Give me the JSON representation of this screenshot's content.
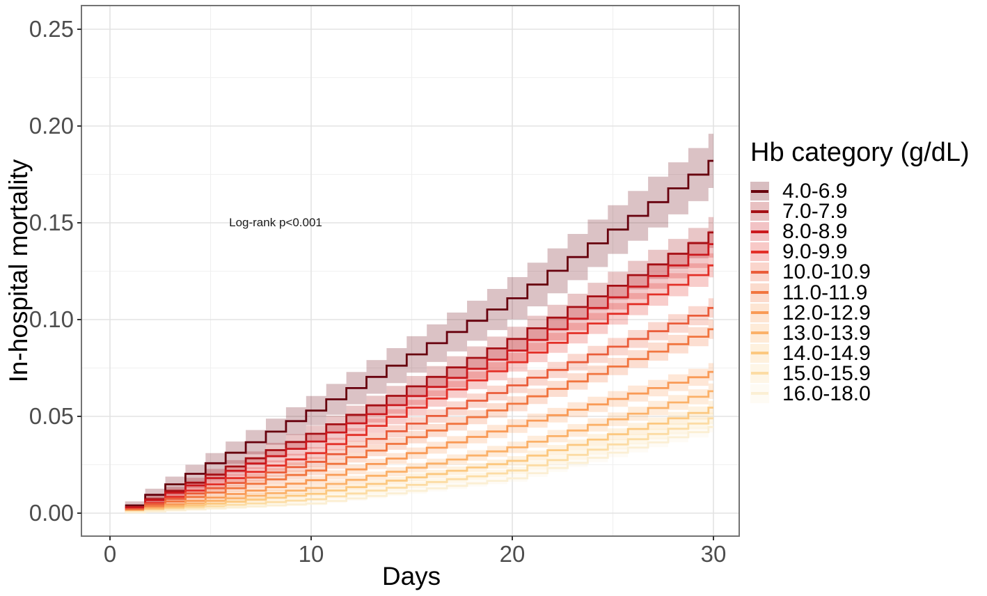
{
  "chart_data": {
    "type": "line",
    "variant": "kaplan_meier_cumulative_incidence_step_curves_with_confidence_bands",
    "title": "",
    "xlabel": "Days",
    "ylabel": "In-hospital mortality",
    "xlim": [
      -1.5,
      31.3
    ],
    "ylim": [
      -0.012,
      0.262
    ],
    "x_tick_values": [
      0,
      10,
      20,
      30
    ],
    "x_tick_labels": [
      "0",
      "10",
      "20",
      "30"
    ],
    "x_minor_gridlines": [
      5,
      15,
      25
    ],
    "y_tick_values": [
      0,
      0.05,
      0.1,
      0.15,
      0.2,
      0.25
    ],
    "y_tick_labels": [
      "0.00",
      "0.05",
      "0.10",
      "0.15",
      "0.20",
      "0.25"
    ],
    "y_minor_gridlines": [
      0.025,
      0.075,
      0.125,
      0.175,
      0.225
    ],
    "grid": true,
    "legend_position": "right",
    "legend_title": "Hb category (g/dL)",
    "annotation": {
      "text": "Log-rank p<0.001",
      "x_day": 8.2,
      "y_value": 0.15
    },
    "anchor_days": [
      1,
      10,
      20,
      30
    ],
    "band_alpha": 0.24,
    "series": [
      {
        "name": "4.0-6.9",
        "color": "#67000d",
        "values": [
          0.004,
          0.053,
          0.111,
          0.182
        ],
        "ci_halfwidth_day30": 0.014
      },
      {
        "name": "7.0-7.9",
        "color": "#a50f15",
        "values": [
          0.003,
          0.041,
          0.09,
          0.145
        ],
        "ci_halfwidth_day30": 0.008
      },
      {
        "name": "8.0-8.9",
        "color": "#cb181d",
        "values": [
          0.003,
          0.037,
          0.084,
          0.139
        ],
        "ci_halfwidth_day30": 0.007
      },
      {
        "name": "9.0-9.9",
        "color": "#e32f27",
        "values": [
          0.002,
          0.031,
          0.078,
          0.128
        ],
        "ci_halfwidth_day30": 0.0062
      },
      {
        "name": "10.0-10.9",
        "color": "#ea5c3a",
        "values": [
          0.002,
          0.0265,
          0.066,
          0.106
        ],
        "ci_halfwidth_day30": 0.005
      },
      {
        "name": "11.0-11.9",
        "color": "#f1753f",
        "values": [
          0.0015,
          0.022,
          0.0565,
          0.095
        ],
        "ci_halfwidth_day30": 0.005
      },
      {
        "name": "12.0-12.9",
        "color": "#f99a56",
        "values": [
          0.001,
          0.017,
          0.045,
          0.073
        ],
        "ci_halfwidth_day30": 0.0045
      },
      {
        "name": "13.0-13.9",
        "color": "#fbb169",
        "values": [
          0.001,
          0.013,
          0.034,
          0.063
        ],
        "ci_halfwidth_day30": 0.004
      },
      {
        "name": "14.0-14.9",
        "color": "#fcc87f",
        "values": [
          0.0008,
          0.01,
          0.027,
          0.0545
        ],
        "ci_halfwidth_day30": 0.0035
      },
      {
        "name": "15.0-15.9",
        "color": "#fcdca4",
        "values": [
          0.0006,
          0.0072,
          0.022,
          0.049
        ],
        "ci_halfwidth_day30": 0.003
      },
      {
        "name": "16.0-18.0",
        "color": "#fbefd4",
        "values": [
          0.0004,
          0.005,
          0.018,
          0.0445
        ],
        "ci_halfwidth_day30": 0.0028
      }
    ]
  }
}
